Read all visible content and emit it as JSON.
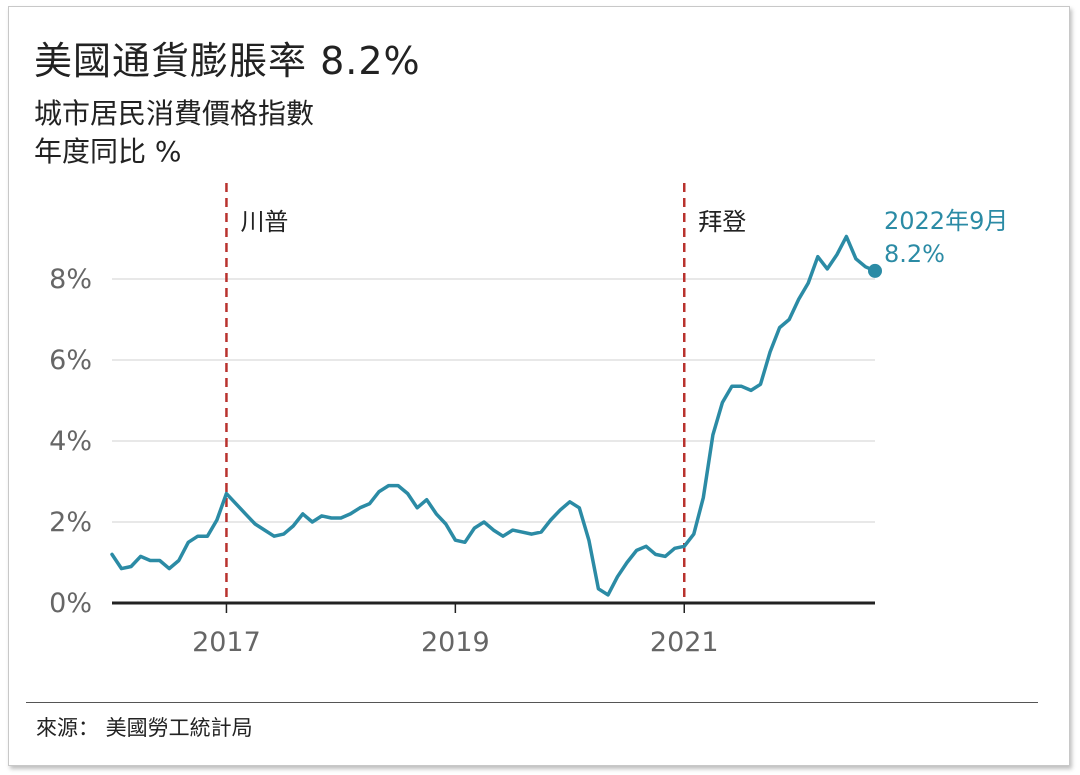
{
  "title": "美國通貨膨脹率 8.2%",
  "subtitle": "城市居民消費價格指數",
  "unit_label": "年度同比 %",
  "source": "來源： 美國勞工統計局",
  "colors": {
    "line": "#2b8ba5",
    "marker": "#d9534f",
    "grid": "#d9d9d9",
    "axis": "#222222",
    "tick": "#666666",
    "annotation": "#2b8ba5"
  },
  "chart_data": {
    "type": "line",
    "title": "美國通貨膨脹率 8.2%",
    "subtitle": "城市居民消費價格指數",
    "ylabel": "年度同比 %",
    "xlabel": "",
    "ylim": [
      0,
      9
    ],
    "xlim": [
      "2016-01",
      "2022-09"
    ],
    "grid": true,
    "yticks": [
      0,
      2,
      4,
      6,
      8
    ],
    "ytick_labels": [
      "0%",
      "2%",
      "4%",
      "6%",
      "8%"
    ],
    "xticks": [
      "2017-01",
      "2019-01",
      "2021-01"
    ],
    "xtick_labels": [
      "2017",
      "2019",
      "2021"
    ],
    "markers": [
      {
        "x": "2017-01",
        "label": "川普"
      },
      {
        "x": "2021-01",
        "label": "拜登"
      }
    ],
    "end_annotation": {
      "x": "2022-09",
      "y": 8.2,
      "line1": "2022年9月",
      "line2": "8.2%"
    },
    "series": [
      {
        "x": [
          "2016-01",
          "2016-02",
          "2016-03",
          "2016-04",
          "2016-05",
          "2016-06",
          "2016-07",
          "2016-08",
          "2016-09",
          "2016-10",
          "2016-11",
          "2016-12",
          "2017-01",
          "2017-02",
          "2017-03",
          "2017-04",
          "2017-05",
          "2017-06",
          "2017-07",
          "2017-08",
          "2017-09",
          "2017-10",
          "2017-11",
          "2017-12",
          "2018-01",
          "2018-02",
          "2018-03",
          "2018-04",
          "2018-05",
          "2018-06",
          "2018-07",
          "2018-08",
          "2018-09",
          "2018-10",
          "2018-11",
          "2018-12",
          "2019-01",
          "2019-02",
          "2019-03",
          "2019-04",
          "2019-05",
          "2019-06",
          "2019-07",
          "2019-08",
          "2019-09",
          "2019-10",
          "2019-11",
          "2019-12",
          "2020-01",
          "2020-02",
          "2020-03",
          "2020-04",
          "2020-05",
          "2020-06",
          "2020-07",
          "2020-08",
          "2020-09",
          "2020-10",
          "2020-11",
          "2020-12",
          "2021-01",
          "2021-02",
          "2021-03",
          "2021-04",
          "2021-05",
          "2021-06",
          "2021-07",
          "2021-08",
          "2021-09",
          "2021-10",
          "2021-11",
          "2021-12",
          "2022-01",
          "2022-02",
          "2022-03",
          "2022-04",
          "2022-05",
          "2022-06",
          "2022-07",
          "2022-08",
          "2022-09"
        ],
        "values": [
          1.2,
          0.85,
          0.9,
          1.15,
          1.05,
          1.05,
          0.85,
          1.05,
          1.5,
          1.65,
          1.65,
          2.05,
          2.7,
          2.45,
          2.2,
          1.95,
          1.8,
          1.65,
          1.7,
          1.9,
          2.2,
          2.0,
          2.15,
          2.1,
          2.1,
          2.2,
          2.35,
          2.45,
          2.75,
          2.9,
          2.9,
          2.7,
          2.35,
          2.55,
          2.2,
          1.95,
          1.55,
          1.5,
          1.85,
          2.0,
          1.8,
          1.65,
          1.8,
          1.75,
          1.7,
          1.75,
          2.05,
          2.3,
          2.5,
          2.35,
          1.55,
          0.35,
          0.2,
          0.65,
          1.0,
          1.3,
          1.4,
          1.2,
          1.15,
          1.35,
          1.4,
          1.7,
          2.6,
          4.15,
          4.95,
          5.35,
          5.35,
          5.25,
          5.4,
          6.2,
          6.8,
          7.0,
          7.5,
          7.9,
          8.55,
          8.25,
          8.6,
          9.05,
          8.5,
          8.3,
          8.2
        ]
      }
    ]
  }
}
